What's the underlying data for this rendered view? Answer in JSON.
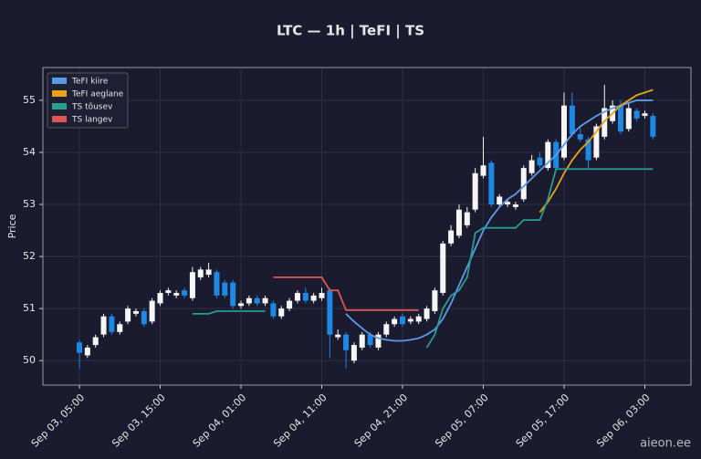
{
  "chart_data": {
    "type": "candlestick",
    "title": "LTC — 1h  |  TeFI  |  TS",
    "y_label": "Price",
    "watermark": "aieon.ee",
    "x": [
      "Sep 03, 05:00",
      "Sep 03, 06:00",
      "Sep 03, 07:00",
      "Sep 03, 08:00",
      "Sep 03, 09:00",
      "Sep 03, 10:00",
      "Sep 03, 11:00",
      "Sep 03, 12:00",
      "Sep 03, 13:00",
      "Sep 03, 14:00",
      "Sep 03, 15:00",
      "Sep 03, 16:00",
      "Sep 03, 17:00",
      "Sep 03, 18:00",
      "Sep 03, 19:00",
      "Sep 03, 20:00",
      "Sep 03, 21:00",
      "Sep 03, 22:00",
      "Sep 03, 23:00",
      "Sep 04, 00:00",
      "Sep 04, 01:00",
      "Sep 04, 02:00",
      "Sep 04, 03:00",
      "Sep 04, 04:00",
      "Sep 04, 05:00",
      "Sep 04, 06:00",
      "Sep 04, 07:00",
      "Sep 04, 08:00",
      "Sep 04, 09:00",
      "Sep 04, 10:00",
      "Sep 04, 11:00",
      "Sep 04, 12:00",
      "Sep 04, 13:00",
      "Sep 04, 14:00",
      "Sep 04, 15:00",
      "Sep 04, 16:00",
      "Sep 04, 17:00",
      "Sep 04, 18:00",
      "Sep 04, 19:00",
      "Sep 04, 20:00",
      "Sep 04, 21:00",
      "Sep 04, 22:00",
      "Sep 04, 23:00",
      "Sep 05, 00:00",
      "Sep 05, 01:00",
      "Sep 05, 02:00",
      "Sep 05, 03:00",
      "Sep 05, 04:00",
      "Sep 05, 05:00",
      "Sep 05, 06:00",
      "Sep 05, 07:00",
      "Sep 05, 08:00",
      "Sep 05, 09:00",
      "Sep 05, 10:00",
      "Sep 05, 11:00",
      "Sep 05, 12:00",
      "Sep 05, 13:00",
      "Sep 05, 14:00",
      "Sep 05, 15:00",
      "Sep 05, 16:00",
      "Sep 05, 17:00",
      "Sep 05, 18:00",
      "Sep 05, 19:00",
      "Sep 05, 20:00",
      "Sep 05, 21:00",
      "Sep 05, 22:00",
      "Sep 05, 23:00",
      "Sep 06, 00:00",
      "Sep 06, 01:00",
      "Sep 06, 02:00",
      "Sep 06, 03:00",
      "Sep 06, 04:00"
    ],
    "open": [
      50.35,
      50.1,
      50.3,
      50.5,
      50.85,
      50.55,
      50.75,
      50.9,
      50.95,
      50.75,
      51.1,
      51.3,
      51.25,
      51.35,
      51.2,
      51.6,
      51.65,
      51.7,
      51.5,
      51.5,
      51.05,
      51.1,
      51.2,
      51.1,
      51.1,
      50.85,
      51.0,
      51.15,
      51.3,
      51.15,
      51.2,
      51.35,
      50.45,
      50.5,
      50.0,
      50.25,
      50.5,
      50.25,
      50.5,
      50.7,
      50.85,
      50.75,
      50.75,
      50.8,
      50.95,
      51.3,
      52.25,
      52.4,
      52.6,
      52.9,
      53.55,
      53.8,
      53.0,
      53.0,
      52.95,
      53.1,
      53.6,
      53.9,
      53.7,
      54.2,
      53.9,
      54.9,
      54.35,
      54.25,
      53.9,
      54.3,
      54.6,
      54.9,
      54.45,
      54.8,
      54.7,
      54.7
    ],
    "high": [
      50.4,
      50.3,
      50.5,
      50.9,
      50.9,
      50.75,
      51.05,
      51.0,
      51.0,
      51.2,
      51.35,
      51.4,
      51.35,
      51.4,
      51.8,
      51.8,
      51.88,
      51.75,
      51.55,
      51.55,
      51.15,
      51.25,
      51.25,
      51.25,
      51.15,
      51.05,
      51.2,
      51.35,
      51.4,
      51.3,
      51.4,
      51.4,
      50.6,
      50.55,
      50.35,
      50.55,
      50.55,
      50.55,
      50.75,
      50.85,
      50.9,
      50.85,
      50.9,
      51.05,
      51.4,
      52.3,
      52.6,
      53.0,
      52.95,
      53.7,
      54.3,
      53.85,
      53.2,
      53.1,
      53.05,
      53.75,
      53.95,
      54.0,
      54.25,
      54.25,
      55.15,
      55.15,
      54.5,
      54.3,
      54.55,
      55.3,
      55.0,
      55.0,
      54.95,
      54.85,
      54.8,
      54.75
    ],
    "low": [
      49.85,
      50.05,
      50.25,
      50.45,
      50.5,
      50.5,
      50.7,
      50.85,
      50.65,
      50.7,
      51.05,
      51.25,
      51.2,
      51.2,
      51.15,
      51.55,
      51.6,
      51.2,
      51.2,
      51.0,
      51.0,
      51.05,
      51.05,
      51.05,
      50.8,
      50.8,
      50.95,
      51.1,
      51.1,
      51.1,
      51.15,
      50.05,
      50.4,
      49.85,
      49.95,
      50.2,
      50.25,
      50.2,
      50.45,
      50.65,
      50.65,
      50.7,
      50.7,
      50.75,
      50.9,
      51.25,
      52.2,
      52.35,
      52.55,
      52.85,
      53.5,
      52.95,
      52.95,
      52.95,
      52.9,
      53.05,
      53.55,
      53.7,
      53.65,
      53.65,
      53.85,
      54.3,
      54.2,
      53.7,
      53.85,
      54.25,
      54.55,
      54.35,
      54.4,
      54.6,
      54.65,
      54.25
    ],
    "close": [
      50.15,
      50.25,
      50.45,
      50.85,
      50.55,
      50.7,
      51.0,
      50.95,
      50.7,
      51.15,
      51.3,
      51.35,
      51.3,
      51.25,
      51.7,
      51.75,
      51.75,
      51.25,
      51.25,
      51.05,
      51.1,
      51.2,
      51.1,
      51.2,
      50.85,
      51.0,
      51.15,
      51.3,
      51.15,
      51.25,
      51.3,
      50.5,
      50.5,
      50.2,
      50.3,
      50.5,
      50.3,
      50.5,
      50.7,
      50.8,
      50.7,
      50.8,
      50.85,
      51.0,
      51.35,
      52.25,
      52.5,
      52.9,
      52.85,
      53.6,
      53.75,
      53.0,
      53.15,
      53.05,
      53.0,
      53.7,
      53.85,
      53.75,
      54.2,
      53.7,
      54.9,
      54.35,
      54.25,
      53.85,
      54.5,
      54.85,
      54.9,
      54.4,
      54.85,
      54.65,
      54.75,
      54.3
    ],
    "up_color": "#f5f5f5",
    "down_color": "#1e88e5",
    "lines": [
      {
        "name": "TeFI kiire",
        "color": "#5b9be6",
        "values": [
          null,
          null,
          null,
          null,
          null,
          null,
          null,
          null,
          null,
          null,
          null,
          null,
          null,
          null,
          null,
          null,
          null,
          null,
          null,
          null,
          null,
          null,
          null,
          null,
          null,
          null,
          null,
          null,
          null,
          null,
          null,
          null,
          null,
          50.9,
          50.75,
          50.62,
          50.5,
          50.43,
          50.4,
          50.38,
          50.38,
          50.4,
          50.43,
          50.5,
          50.6,
          50.8,
          51.1,
          51.45,
          51.8,
          52.15,
          52.5,
          52.75,
          52.95,
          53.1,
          53.2,
          53.35,
          53.5,
          53.65,
          53.8,
          53.95,
          54.15,
          54.35,
          54.5,
          54.6,
          54.7,
          54.78,
          54.85,
          54.9,
          54.95,
          55.0,
          55.0,
          55.0
        ]
      },
      {
        "name": "TeFI aeglane",
        "color": "#e6a219",
        "values": [
          null,
          null,
          null,
          null,
          null,
          null,
          null,
          null,
          null,
          null,
          null,
          null,
          null,
          null,
          null,
          null,
          null,
          null,
          null,
          null,
          null,
          null,
          null,
          null,
          null,
          null,
          null,
          null,
          null,
          null,
          null,
          null,
          null,
          null,
          null,
          null,
          null,
          null,
          null,
          null,
          null,
          null,
          null,
          null,
          null,
          null,
          null,
          null,
          null,
          null,
          null,
          null,
          null,
          null,
          null,
          null,
          null,
          52.85,
          53.05,
          53.3,
          53.6,
          53.85,
          54.05,
          54.2,
          54.4,
          54.6,
          54.75,
          54.9,
          55.0,
          55.1,
          55.15,
          55.2
        ]
      },
      {
        "name": "TS tõusev",
        "color": "#2a9d8f",
        "values": [
          null,
          null,
          null,
          null,
          null,
          null,
          null,
          null,
          null,
          null,
          null,
          null,
          null,
          null,
          50.9,
          50.9,
          50.9,
          50.95,
          50.95,
          50.95,
          50.95,
          50.95,
          50.95,
          50.95,
          null,
          null,
          null,
          null,
          null,
          null,
          null,
          null,
          null,
          null,
          null,
          null,
          null,
          null,
          null,
          null,
          null,
          null,
          null,
          50.25,
          50.5,
          51.0,
          51.25,
          51.35,
          51.6,
          52.45,
          52.55,
          52.55,
          52.55,
          52.55,
          52.55,
          52.7,
          52.7,
          52.7,
          53.1,
          53.68,
          53.68,
          53.68,
          53.68,
          53.68,
          53.68,
          53.68,
          53.68,
          53.68,
          53.68,
          53.68,
          53.68,
          53.68
        ]
      },
      {
        "name": "TS langev",
        "color": "#e05555",
        "values": [
          null,
          null,
          null,
          null,
          null,
          null,
          null,
          null,
          null,
          null,
          null,
          null,
          null,
          null,
          null,
          null,
          null,
          null,
          null,
          null,
          null,
          null,
          null,
          null,
          51.6,
          51.6,
          51.6,
          51.6,
          51.6,
          51.6,
          51.6,
          51.35,
          51.35,
          50.97,
          50.97,
          50.97,
          50.97,
          50.97,
          50.97,
          50.97,
          50.97,
          50.97,
          50.97,
          null,
          null,
          null,
          null,
          null,
          null,
          null,
          null,
          null,
          null,
          null,
          null,
          null,
          null,
          null,
          null,
          null,
          null,
          null,
          null,
          null,
          null,
          null,
          null,
          null,
          null,
          null,
          null,
          null
        ]
      }
    ],
    "ylim": [
      49.53,
      55.63
    ],
    "yticks": [
      50,
      51,
      52,
      53,
      54,
      55
    ],
    "xticks": [
      "Sep 03, 05:00",
      "Sep 03, 15:00",
      "Sep 04, 01:00",
      "Sep 04, 11:00",
      "Sep 04, 21:00",
      "Sep 05, 07:00",
      "Sep 05, 17:00",
      "Sep 06, 03:00"
    ],
    "grid": true,
    "legend": "upper left"
  }
}
